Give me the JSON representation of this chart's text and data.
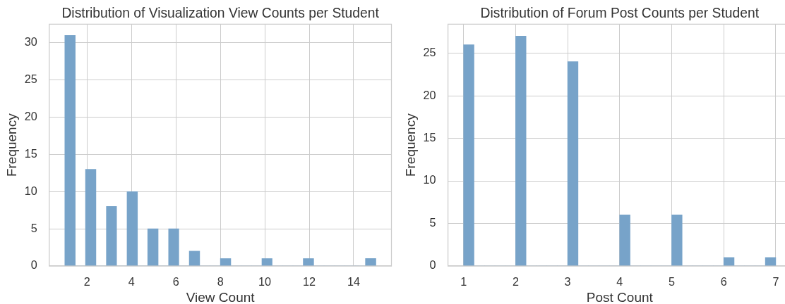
{
  "chart_data": [
    {
      "type": "histogram",
      "title": "Distribution of Visualization View Counts per Student",
      "xlabel": "View Count",
      "ylabel": "Frequency",
      "color": "#77a3c9",
      "bins": [
        1,
        1.47,
        1.93,
        2.4,
        2.87,
        3.33,
        3.8,
        4.27,
        4.73,
        5.2,
        5.67,
        6.13,
        6.6,
        7.07,
        7.53,
        8,
        8.47,
        8.93,
        9.4,
        9.87,
        10.33,
        10.8,
        11.27,
        11.73,
        12.2,
        12.67,
        13.13,
        13.6,
        14.07,
        14.53,
        15
      ],
      "values": [
        31,
        0,
        13,
        0,
        8,
        0,
        10,
        0,
        5,
        0,
        5,
        0,
        2,
        0,
        0,
        1,
        0,
        0,
        0,
        1,
        0,
        0,
        0,
        1,
        0,
        0,
        0,
        0,
        0,
        1
      ],
      "xlim": [
        0.3,
        15.7
      ],
      "xticks": [
        2,
        4,
        6,
        8,
        10,
        12,
        14
      ],
      "ylim": [
        0,
        32.5
      ],
      "yticks": [
        0,
        5,
        10,
        15,
        20,
        25,
        30
      ],
      "grid": true
    },
    {
      "type": "histogram",
      "title": "Distribution of Forum Post Counts per Student",
      "xlabel": "Post Count",
      "ylabel": "Frequency",
      "color": "#77a3c9",
      "bins": [
        1,
        1.2,
        1.4,
        1.6,
        1.8,
        2,
        2.2,
        2.4,
        2.6,
        2.8,
        3,
        3.2,
        3.4,
        3.6,
        3.8,
        4,
        4.2,
        4.4,
        4.6,
        4.8,
        5,
        5.2,
        5.4,
        5.6,
        5.8,
        6,
        6.2,
        6.4,
        6.6,
        6.8,
        7
      ],
      "values": [
        26,
        0,
        0,
        0,
        0,
        27,
        0,
        0,
        0,
        0,
        24,
        0,
        0,
        0,
        0,
        6,
        0,
        0,
        0,
        0,
        6,
        0,
        0,
        0,
        0,
        1,
        0,
        0,
        0,
        1
      ],
      "xlim": [
        0.7,
        7.3
      ],
      "xticks": [
        1,
        2,
        3,
        4,
        5,
        6,
        7
      ],
      "ylim": [
        0,
        28.4
      ],
      "yticks": [
        0,
        5,
        10,
        15,
        20,
        25
      ],
      "grid": true
    }
  ]
}
